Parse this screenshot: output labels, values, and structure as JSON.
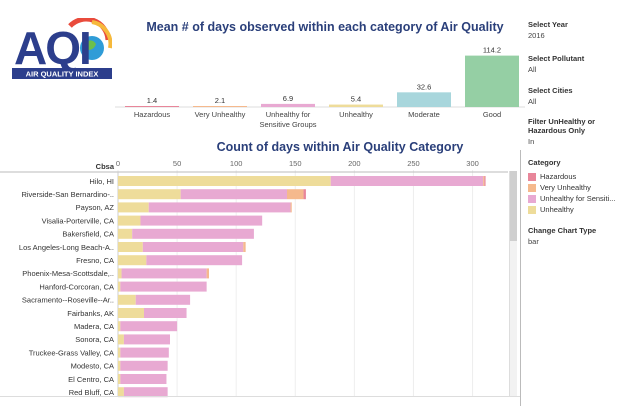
{
  "logo": {
    "letters": "AQI",
    "caption": "AIR QUALITY INDEX"
  },
  "colors": {
    "hazardous": "#e8869a",
    "very_unhealthy": "#f5b98d",
    "sensitive": "#e8a9d2",
    "unhealthy": "#eedc9a",
    "moderate": "#a8d6dc",
    "good": "#95cfa4"
  },
  "filters": {
    "year_label": "Select Year",
    "year_value": "2016",
    "pollutant_label": "Select Pollutant",
    "pollutant_value": "All",
    "cities_label": "Select Cities",
    "cities_value": "All",
    "filter_label_1": "Filter UnHealthy or",
    "filter_label_2": "Hazardous Only",
    "filter_value": "In",
    "legend_title": "Category",
    "legend": [
      "Hazardous",
      "Very Unhealthy",
      "Unhealthy for Sensiti...",
      "Unhealthy"
    ],
    "chart_type_label": "Change Chart Type",
    "chart_type_value": "bar"
  },
  "chart_data": [
    {
      "type": "bar",
      "title": "Mean # of days observed within each category of Air Quality",
      "categories": [
        "Hazardous",
        "Very Unhealthy",
        "Unhealthy for Sensitive Groups",
        "Unhealthy",
        "Moderate",
        "Good"
      ],
      "category_lines": [
        [
          "Hazardous"
        ],
        [
          "Very Unhealthy"
        ],
        [
          "Unhealthy for",
          "Sensitive Groups"
        ],
        [
          "Unhealthy"
        ],
        [
          "Moderate"
        ],
        [
          "Good"
        ]
      ],
      "values": [
        1.4,
        2.1,
        6.9,
        5.4,
        32.6,
        114.2
      ],
      "value_labels": [
        "1.4",
        "2.1",
        "6.9",
        "5.4",
        "32.6",
        "114.2"
      ],
      "ylim": [
        0,
        120
      ]
    },
    {
      "type": "bar",
      "orientation": "horizontal",
      "stacked": true,
      "title": "Count of days within Air Quality Category",
      "row_header": "Cbsa",
      "categories": [
        "Hilo, HI",
        "Riverside-San Bernardino-..",
        "Payson, AZ",
        "Visalia-Porterville, CA",
        "Bakersfield, CA",
        "Los Angeles-Long Beach-A..",
        "Fresno, CA",
        "Phoenix-Mesa-Scottsdale,..",
        "Hanford-Corcoran, CA",
        "Sacramento--Roseville--Ar..",
        "Fairbanks, AK",
        "Madera, CA",
        "Sonora, CA",
        "Truckee-Grass Valley, CA",
        "Modesto, CA",
        "El Centro, CA",
        "Red Bluff, CA"
      ],
      "series": [
        {
          "name": "Unhealthy",
          "values": [
            180,
            53,
            26,
            19,
            12,
            21,
            24,
            3,
            2,
            15,
            22,
            2,
            5,
            2,
            2,
            2,
            5
          ]
        },
        {
          "name": "Unhealthy for Sensitive Groups",
          "values": [
            129,
            90,
            120,
            103,
            103,
            85,
            81,
            72,
            73,
            46,
            36,
            48,
            39,
            41,
            40,
            39,
            37
          ]
        },
        {
          "name": "Very Unhealthy",
          "values": [
            1,
            14,
            1,
            0,
            0,
            2,
            0,
            2,
            0,
            0,
            0,
            0,
            0,
            0,
            0,
            0,
            0
          ]
        },
        {
          "name": "Hazardous",
          "values": [
            1,
            2,
            0,
            0,
            0,
            0,
            0,
            0,
            0,
            0,
            0,
            0,
            0,
            0,
            0,
            0,
            0
          ]
        }
      ],
      "xticks": [
        0,
        50,
        100,
        150,
        200,
        250,
        300
      ],
      "xlim": [
        0,
        330
      ]
    }
  ]
}
